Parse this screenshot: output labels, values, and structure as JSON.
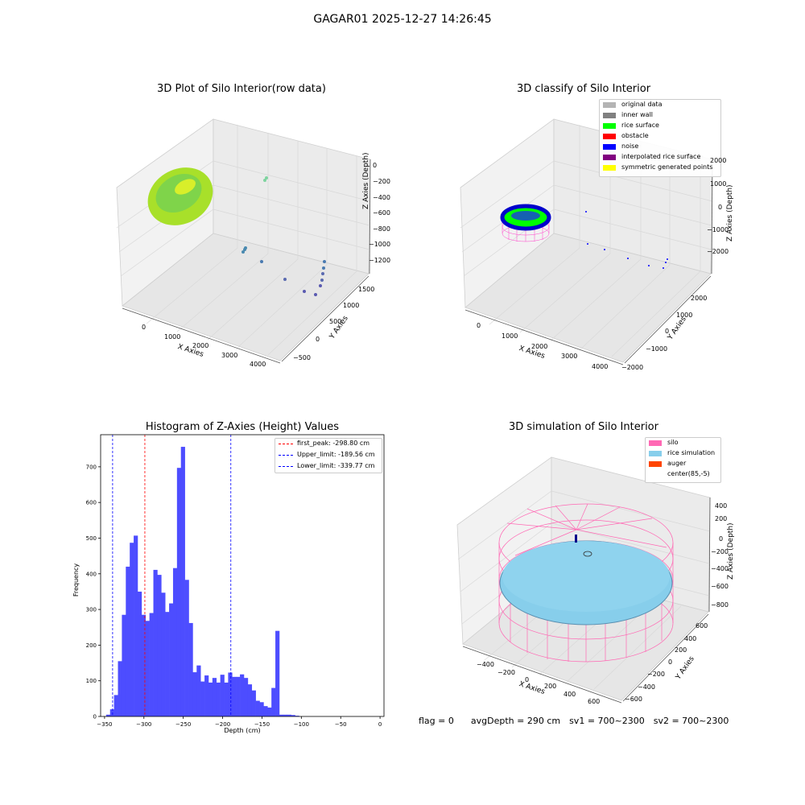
{
  "suptitle": "GAGAR01 2025-12-27 14:26:45",
  "footer": {
    "flag": "flag = 0",
    "avg_depth": "avgDepth = 290 cm",
    "sv1": "sv1 = 700~2300",
    "sv2": "sv2 = 700~2300"
  },
  "colors": {
    "histogram_bar": "#4d4dff",
    "peak_line": "#ff0000",
    "limit_line": "#0000ff",
    "silo": "#ff69b4",
    "rice_sim": "#87ceeb",
    "auger": "#ff4500",
    "rice_surface": "#00ff00",
    "noise": "#0000ff",
    "pane": "#f2f2f2",
    "grid": "#d8d8d8"
  },
  "panel1": {
    "title": "3D Plot of Silo Interior(row data)",
    "xlabel": "X Axies",
    "ylabel": "Y Axies",
    "zlabel": "Z Axies (Depth)",
    "xticks": [
      "0",
      "1000",
      "2000",
      "3000",
      "4000"
    ],
    "yticks": [
      "−500",
      "0",
      "500",
      "1000",
      "1500"
    ],
    "zticks": [
      "0",
      "−200",
      "−400",
      "−600",
      "−800",
      "−1000",
      "−1200"
    ]
  },
  "panel2": {
    "title": "3D classify of Silo Interior",
    "xlabel": "X Axies",
    "ylabel": "Y Axies",
    "zlabel": "Z Axies (Depth)",
    "xticks": [
      "0",
      "1000",
      "2000",
      "3000",
      "4000"
    ],
    "yticks": [
      "−2000",
      "−1000",
      "0",
      "1000",
      "2000"
    ],
    "zticks": [
      "2000",
      "1000",
      "0",
      "−1000",
      "−2000"
    ],
    "legend": [
      {
        "label": "original data",
        "color": "#b4b4b4"
      },
      {
        "label": "inner wall",
        "color": "#808080"
      },
      {
        "label": "rice surface",
        "color": "#00ff00"
      },
      {
        "label": "obstacle",
        "color": "#ff0000"
      },
      {
        "label": "noise",
        "color": "#0000ff"
      },
      {
        "label": "interpolated rice surface",
        "color": "#800080"
      },
      {
        "label": "symmetric generated points",
        "color": "#ffff00"
      }
    ]
  },
  "panel4": {
    "title": "3D simulation of Silo Interior",
    "xlabel": "X Axies",
    "ylabel": "Y Axies",
    "zlabel": "Z Axies (Depth)",
    "xticks": [
      "−400",
      "−200",
      "0",
      "200",
      "400",
      "600"
    ],
    "yticks": [
      "−600",
      "−400",
      "−200",
      "0",
      "200",
      "400",
      "600"
    ],
    "zticks": [
      "400",
      "200",
      "0",
      "−200",
      "−400",
      "−600",
      "−800"
    ],
    "legend": [
      {
        "label": "silo",
        "color": "#ff69b4"
      },
      {
        "label": "rice simulation",
        "color": "#87ceeb"
      },
      {
        "label": "auger",
        "color": "#ff4500"
      },
      {
        "label": "center(85,-5)",
        "color": "none"
      }
    ]
  },
  "chart_data": [
    {
      "type": "histogram",
      "title": "Histogram of Z-Axies (Height) Values",
      "xlabel": "Depth (cm)",
      "ylabel": "Frequency",
      "xlim": [
        -355,
        5
      ],
      "ylim": [
        0,
        790
      ],
      "xticks": [
        -350,
        -300,
        -250,
        -200,
        -150,
        -100,
        -50,
        0
      ],
      "yticks": [
        0,
        100,
        200,
        300,
        400,
        500,
        600,
        700
      ],
      "bin_width": 5,
      "bin_start": -348,
      "counts": [
        5,
        20,
        60,
        155,
        285,
        420,
        487,
        507,
        350,
        285,
        268,
        290,
        411,
        397,
        347,
        293,
        317,
        416,
        697,
        756,
        383,
        262,
        124,
        143,
        98,
        115,
        95,
        108,
        95,
        117,
        95,
        123,
        111,
        111,
        118,
        108,
        90,
        73,
        44,
        40,
        29,
        25,
        80,
        240,
        5,
        5,
        5,
        4,
        2
      ],
      "lines": [
        {
          "name": "first_peak: -298.80 cm",
          "x": -298.8,
          "color": "#ff0000"
        },
        {
          "name": "Upper_limit: -189.56 cm",
          "x": -189.56,
          "color": "#0000ff"
        },
        {
          "name": "Lower_limit: -339.77 cm",
          "x": -339.77,
          "color": "#0000ff"
        }
      ],
      "legend_position": "top-right"
    }
  ]
}
